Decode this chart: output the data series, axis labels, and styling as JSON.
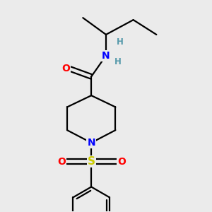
{
  "background_color": "#ebebeb",
  "atom_colors": {
    "C": "#000000",
    "N": "#0000ff",
    "O": "#ff0000",
    "S": "#cccc00",
    "H": "#5599aa"
  },
  "figsize": [
    3.0,
    3.0
  ],
  "dpi": 100,
  "bond_lw": 1.6
}
